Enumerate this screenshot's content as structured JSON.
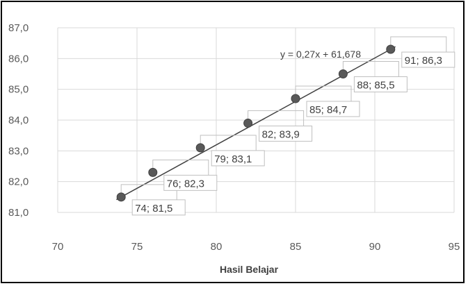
{
  "chart_data": {
    "type": "scatter",
    "xlabel": "Hasil Belajar",
    "ylabel": "",
    "title": "",
    "xlim": [
      70,
      95
    ],
    "ylim": [
      81.0,
      87.0
    ],
    "x_ticks": [
      "70",
      "75",
      "80",
      "85",
      "90",
      "95"
    ],
    "y_ticks": [
      "81,0",
      "82,0",
      "83,0",
      "84,0",
      "85,0",
      "86,0",
      "87,0"
    ],
    "grid": true,
    "points": [
      {
        "x": 74,
        "y": 81.5,
        "label": "74; 81,5"
      },
      {
        "x": 76,
        "y": 82.3,
        "label": "76; 82,3"
      },
      {
        "x": 79,
        "y": 83.1,
        "label": "79; 83,1"
      },
      {
        "x": 82,
        "y": 83.9,
        "label": "82; 83,9"
      },
      {
        "x": 85,
        "y": 84.7,
        "label": "85; 84,7"
      },
      {
        "x": 88,
        "y": 85.5,
        "label": "88; 85,5"
      },
      {
        "x": 91,
        "y": 86.3,
        "label": "91; 86,3"
      }
    ],
    "trendline": {
      "type": "linear",
      "equation": "y = 0,27x + 61,678"
    },
    "colors": {
      "marker": "#595959",
      "trendline": "#404040",
      "grid": "#d9d9d9",
      "label_box": "#bfbfbf"
    }
  }
}
